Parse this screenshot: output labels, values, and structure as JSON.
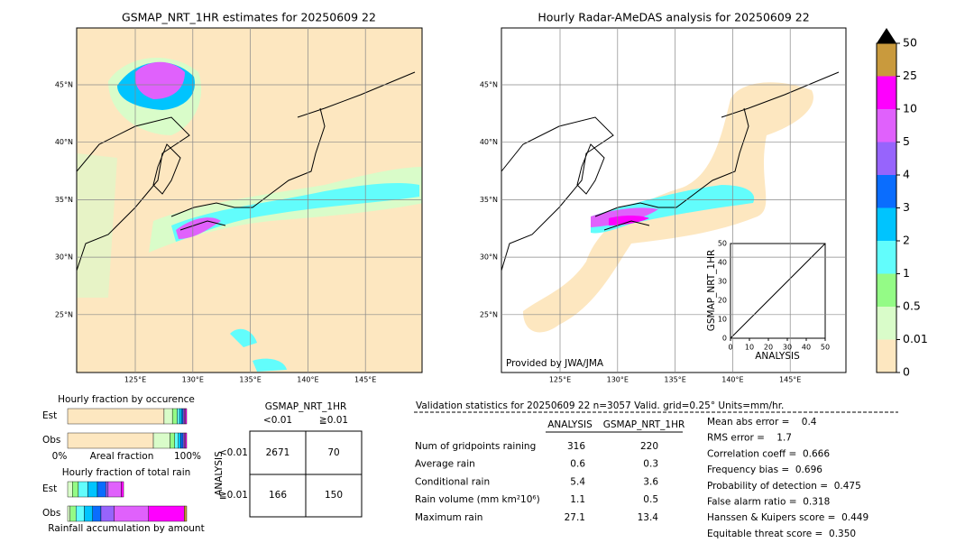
{
  "left_map": {
    "title": "GSMAP_NRT_1HR estimates for 20250609 22",
    "lat_labels": [
      "45°N",
      "40°N",
      "35°N",
      "30°N",
      "25°N"
    ],
    "lon_labels": [
      "125°E",
      "130°E",
      "135°E",
      "140°E",
      "145°E"
    ]
  },
  "right_map": {
    "title": "Hourly Radar-AMeDAS analysis for 20250609 22",
    "lat_labels": [
      "45°N",
      "40°N",
      "35°N",
      "30°N",
      "25°N"
    ],
    "lon_labels": [
      "125°E",
      "130°E",
      "135°E",
      "140°E",
      "145°E"
    ],
    "credit": "Provided by JWA/JMA"
  },
  "scatter": {
    "xlabel": "ANALYSIS",
    "ylabel": "GSMAP_NRT_1HR",
    "ticks": [
      0,
      10,
      20,
      30,
      40,
      50
    ]
  },
  "colorbar": {
    "levels": [
      0,
      0.01,
      0.5,
      1,
      2,
      3,
      4,
      5,
      10,
      25,
      50
    ],
    "colors": [
      "#fde7c0",
      "#d9fcc9",
      "#94fb86",
      "#62fdfc",
      "#00c4fe",
      "#0a6dfe",
      "#9764fc",
      "#e061fc",
      "#fe00fe",
      "#c99a3d"
    ]
  },
  "fraction": {
    "title_occurrence": "Hourly fraction by occurence",
    "title_rain": "Hourly fraction of total rain",
    "xlabel_occurrence": "Areal fraction",
    "xlabel_rain": "Rainfall accumulation by amount",
    "x_start": "0%",
    "x_end": "100%",
    "occurrence": [
      {
        "name": "Est",
        "values": [
          0.81,
          0.07,
          0.04,
          0.02,
          0.02,
          0.01,
          0.01,
          0.01,
          0.01,
          0
        ]
      },
      {
        "name": "Obs",
        "values": [
          0.72,
          0.14,
          0.04,
          0.03,
          0.02,
          0.02,
          0.01,
          0.01,
          0.01,
          0
        ]
      }
    ],
    "rain": [
      {
        "name": "Est",
        "values": [
          0,
          0.04,
          0.05,
          0.08,
          0.08,
          0.07,
          0.02,
          0.11,
          0.02,
          0
        ]
      },
      {
        "name": "Obs",
        "values": [
          0,
          0.02,
          0.05,
          0.07,
          0.07,
          0.07,
          0.11,
          0.29,
          0.3,
          0.02
        ]
      }
    ]
  },
  "contingency": {
    "title": "GSMAP_NRT_1HR",
    "columns": [
      "<0.01",
      "≧0.01"
    ],
    "ylabel": "ANALYSIS",
    "rows": [
      "<0.01",
      "≧0.01"
    ],
    "cells": [
      [
        2671,
        70
      ],
      [
        166,
        150
      ]
    ]
  },
  "validation": {
    "header": "Validation statistics for 20250609 22  n=3057 Valid. grid=0.25° Units=mm/hr.",
    "columns": [
      "ANALYSIS",
      "GSMAP_NRT_1HR"
    ],
    "rows": [
      {
        "label": "Num of gridpoints raining",
        "values": [
          316,
          220
        ]
      },
      {
        "label": "Average rain",
        "values": [
          0.6,
          0.3
        ]
      },
      {
        "label": "Conditional rain",
        "values": [
          5.4,
          3.6
        ]
      },
      {
        "label": "Rain volume (mm km²10⁶)",
        "values": [
          1.1,
          0.5
        ]
      },
      {
        "label": "Maximum rain",
        "values": [
          27.1,
          13.4
        ]
      }
    ],
    "scores": [
      "Mean abs error =    0.4",
      "RMS error =    1.7",
      "Correlation coeff =  0.666",
      "Frequency bias =  0.696",
      "Probability of detection =  0.475",
      "False alarm ratio =  0.318",
      "Hanssen & Kuipers score =  0.449",
      "Equitable threat score =  0.350"
    ]
  }
}
